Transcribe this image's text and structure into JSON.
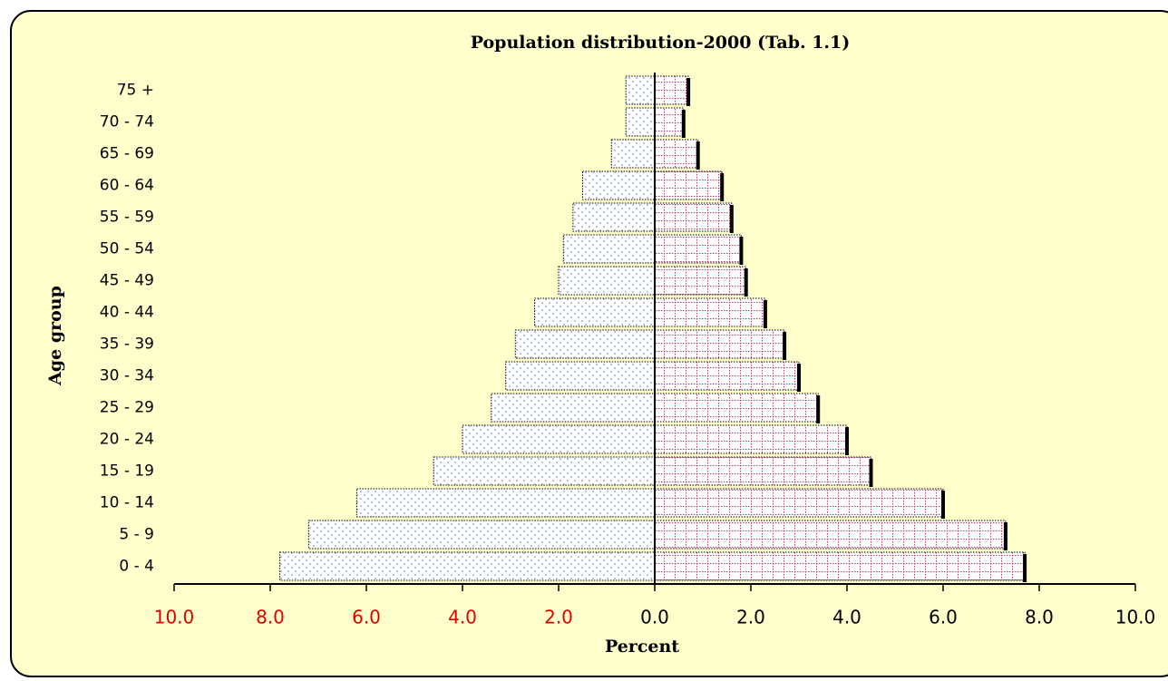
{
  "chart_data": {
    "type": "pyramid",
    "title": "Population distribution-2000 (Tab. 1.1)",
    "x_label": "Percent",
    "y_label": "Age group",
    "categories": [
      "0 - 4",
      "5 - 9",
      "10 - 14",
      "15 - 19",
      "20 - 24",
      "25 - 29",
      "30 - 34",
      "35 - 39",
      "40 - 44",
      "45 - 49",
      "50 - 54",
      "55 - 59",
      "60 - 64",
      "65 - 69",
      "70 - 74",
      "75 +"
    ],
    "series": [
      {
        "color": "#c8d0f0",
        "values": [
          -7.8,
          -7.2,
          -6.2,
          -4.6,
          -4.0,
          -3.4,
          -3.1,
          -2.9,
          -2.5,
          -2.0,
          -1.9,
          -1.7,
          -1.5,
          -0.9,
          -0.6,
          -0.6
        ]
      },
      {
        "color": "#c03060",
        "values": [
          7.7,
          7.3,
          6.0,
          4.5,
          4.0,
          3.4,
          3.0,
          2.7,
          2.3,
          1.9,
          1.8,
          1.6,
          1.4,
          0.9,
          0.6,
          0.7
        ]
      }
    ],
    "xlim": [
      -10,
      10
    ],
    "xticks": [
      {
        "value": -10,
        "label": "10.0"
      },
      {
        "value": -8,
        "label": "8.0"
      },
      {
        "value": -6,
        "label": "6.0"
      },
      {
        "value": -4,
        "label": "4.0"
      },
      {
        "value": -2,
        "label": "2.0"
      },
      {
        "value": 0,
        "label": "0.0"
      },
      {
        "value": 2,
        "label": "2.0"
      },
      {
        "value": 4,
        "label": "4.0"
      },
      {
        "value": 6,
        "label": "6.0"
      },
      {
        "value": 8,
        "label": "8.0"
      },
      {
        "value": 10,
        "label": "10.0"
      }
    ],
    "negative_tick_color": "#e00000",
    "tick_color": "#000000",
    "grid": false
  }
}
